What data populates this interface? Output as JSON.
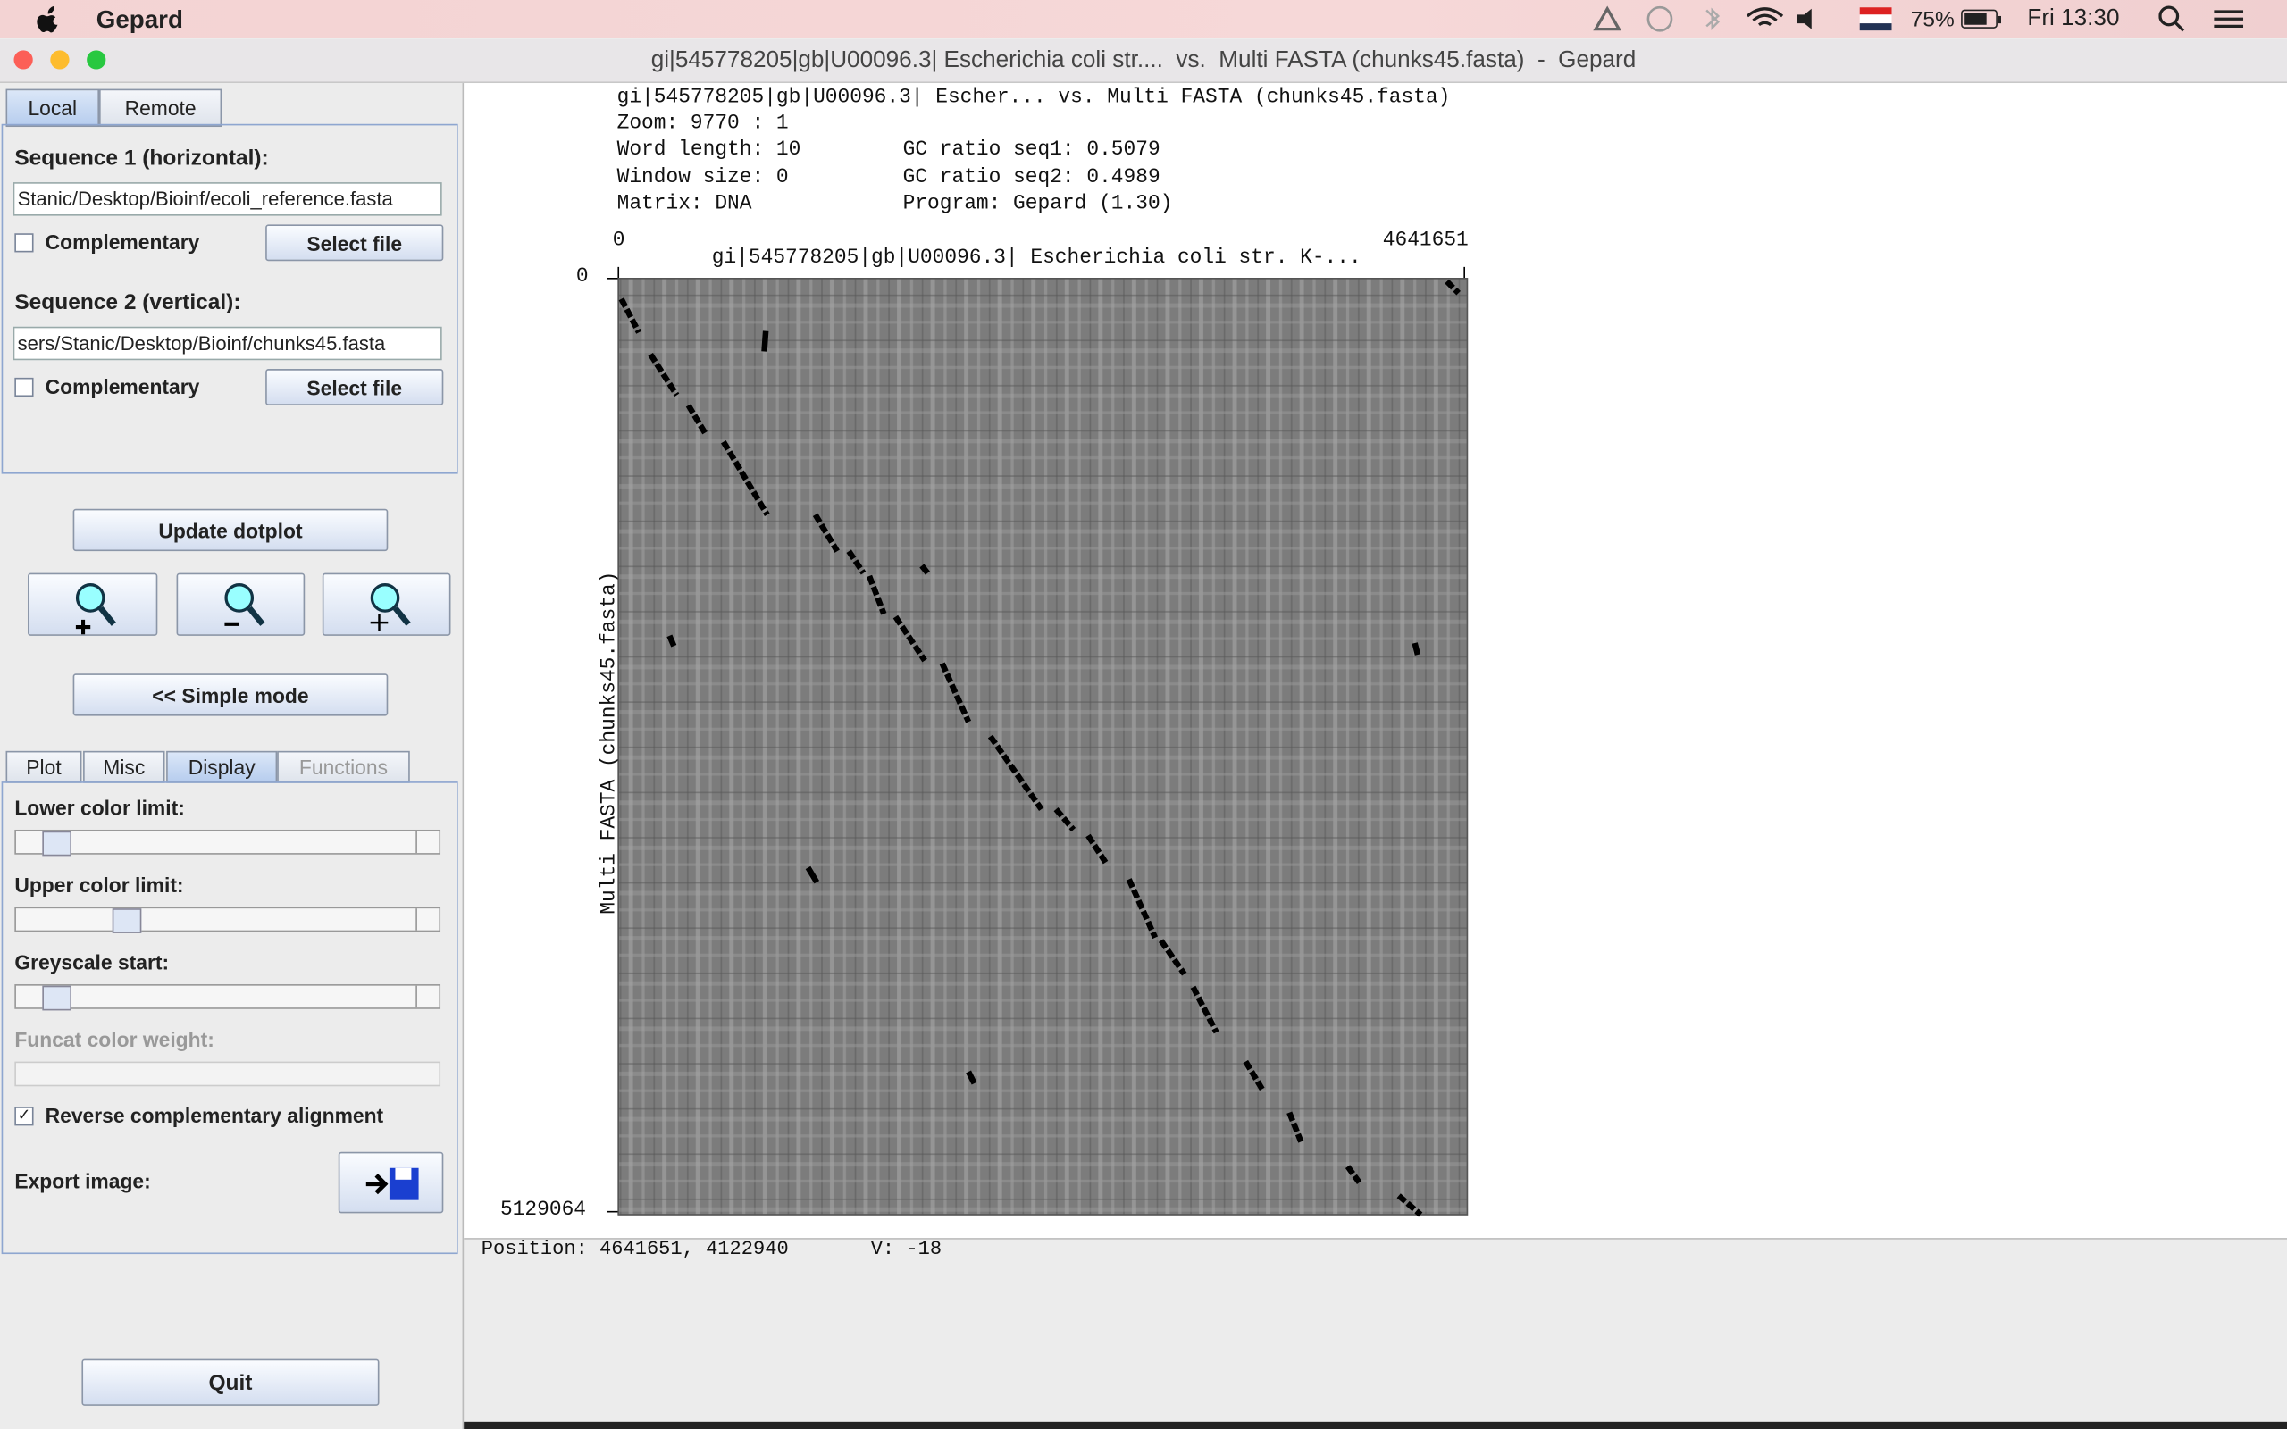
{
  "menubar": {
    "app": "Gepard",
    "battery": "75%",
    "clock": "Fri 13:30"
  },
  "window": {
    "title": "gi|545778205|gb|U00096.3| Escherichia coli str....  vs.  Multi FASTA (chunks45.fasta)  -  Gepard"
  },
  "sidebar": {
    "source_tabs": [
      "Local",
      "Remote"
    ],
    "seq1": {
      "label": "Sequence 1 (horizontal):",
      "path": "Stanic/Desktop/Bioinf/ecoli_reference.fasta",
      "complementary": "Complementary",
      "select": "Select file"
    },
    "seq2": {
      "label": "Sequence 2 (vertical):",
      "path": "sers/Stanic/Desktop/Bioinf/chunks45.fasta",
      "complementary": "Complementary",
      "select": "Select file"
    },
    "update": "Update dotplot",
    "simple_mode": "<< Simple mode",
    "option_tabs": [
      "Plot",
      "Misc",
      "Display",
      "Functions"
    ],
    "sliders": [
      "Lower color limit:",
      "Upper color limit:",
      "Greyscale start:",
      "Funcat color weight:"
    ],
    "reverse": "Reverse complementary alignment",
    "export": "Export image:",
    "quit": "Quit"
  },
  "plot": {
    "header": "gi|545778205|gb|U00096.3| Escher... vs. Multi FASTA (chunks45.fasta)",
    "zoom": "Zoom: 9770 : 1",
    "word_length": "Word length: 10",
    "gc1": "GC ratio seq1: 0.5079",
    "window_size": "Window size: 0",
    "gc2": "GC ratio seq2: 0.4989",
    "matrix": "Matrix: DNA",
    "program": "Program: Gepard (1.30)",
    "x_start": "0",
    "x_end": "4641651",
    "x_title": "gi|545778205|gb|U00096.3| Escherichia coli str. K-...",
    "y_start": "0",
    "y_end": "5129064",
    "y_title": "Multi FASTA (chunks45.fasta)",
    "position": "Position: 4641651, 4122940",
    "value": "V: -18"
  }
}
